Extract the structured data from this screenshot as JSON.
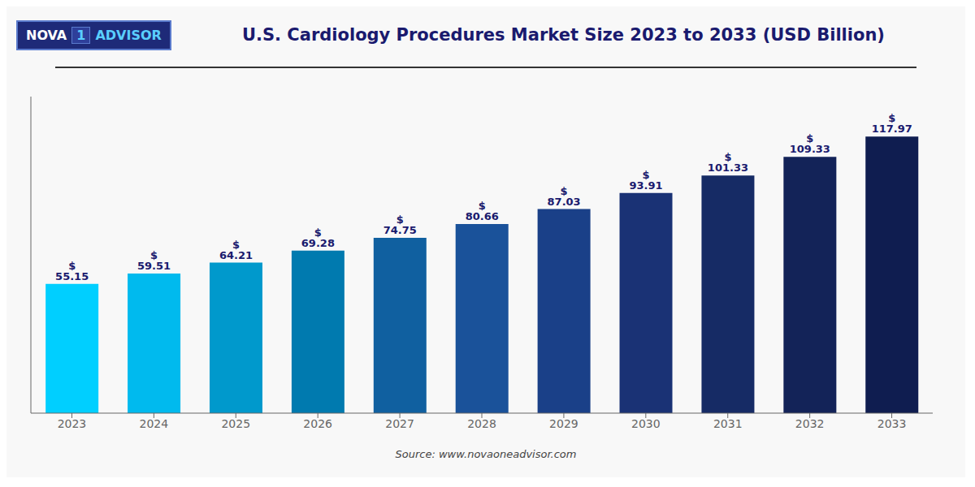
{
  "chart_data": {
    "type": "bar",
    "title": "U.S. Cardiology Procedures Market Size 2023 to 2033 (USD Billion)",
    "annotations": [
      "Source: www.novaoneadvisor.com",
      "NOVA",
      "1",
      "ADVISOR"
    ],
    "categories": [
      "2023",
      "2024",
      "2025",
      "2026",
      "2027",
      "2028",
      "2029",
      "2030",
      "2031",
      "2032",
      "2033"
    ],
    "values": [
      55.15,
      59.51,
      64.21,
      69.28,
      74.75,
      80.66,
      87.03,
      93.91,
      101.33,
      109.33,
      117.97
    ],
    "value_labels": [
      "$ 55.15",
      "$ 59.51",
      "$ 64.21",
      "$ 69.28",
      "$ 74.75",
      "$ 80.66",
      "$ 87.03",
      "$ 93.91",
      "$ 101.33",
      "$ 109.33",
      "$ 117.97"
    ],
    "colors": [
      "#00CFFF",
      "#00BAEE",
      "#0099CC",
      "#007AAF",
      "#1060A0",
      "#1A529A",
      "#1A4088",
      "#1A3275",
      "#162B65",
      "#132358",
      "#0F1D50"
    ],
    "ylim": [
      0,
      135
    ],
    "yticks": [],
    "grid": false,
    "data_labels": true,
    "tick_labels": "x"
  }
}
